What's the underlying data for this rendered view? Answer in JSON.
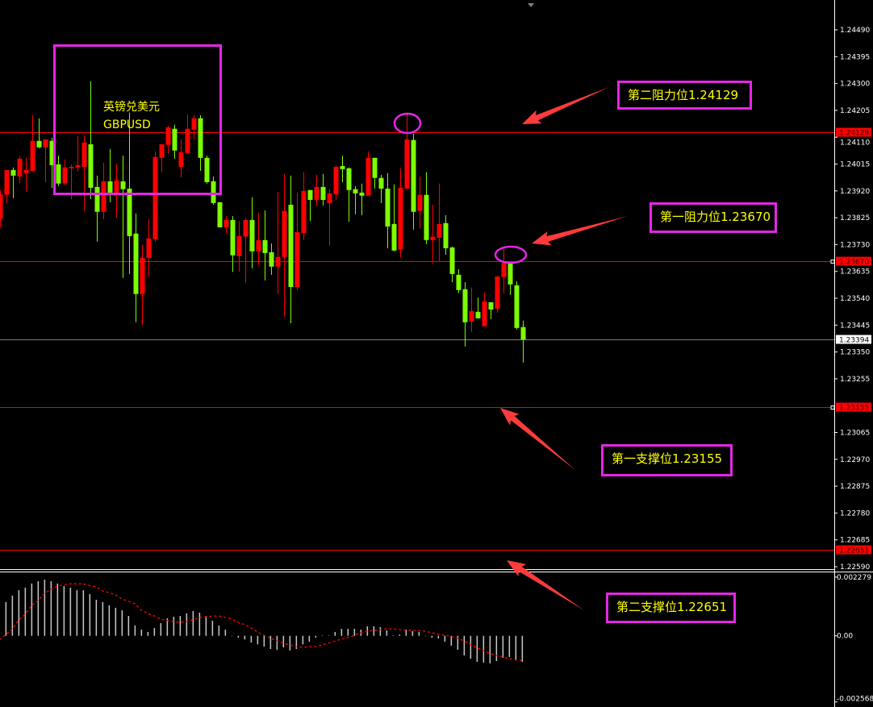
{
  "chart_data": {
    "type": "candlestick",
    "symbol_label": "英镑兑美元",
    "symbol_code": "GBPUSD",
    "price_axis": {
      "range": [
        1.2251,
        1.2459
      ],
      "ticks": [
        "1.24490",
        "1.24395",
        "1.24300",
        "1.24205",
        "1.24110",
        "1.24015",
        "1.23920",
        "1.23825",
        "1.23730",
        "1.23635",
        "1.23540",
        "1.23445",
        "1.23350",
        "1.23255",
        "1.23065",
        "1.22970",
        "1.22875",
        "1.22780",
        "1.22685",
        "1.22590"
      ]
    },
    "candle_format": [
      "open",
      "high",
      "low",
      "close"
    ],
    "candles": [
      [
        1.2382,
        1.23923,
        1.23791,
        1.23908
      ],
      [
        1.23906,
        1.23994,
        1.23877,
        1.23994
      ],
      [
        1.23994,
        1.24003,
        1.23894,
        1.23974
      ],
      [
        1.23971,
        1.24043,
        1.23948,
        1.24034
      ],
      [
        1.23983,
        1.24037,
        1.23917,
        1.23994
      ],
      [
        1.23991,
        1.24188,
        1.23988,
        1.24097
      ],
      [
        1.24097,
        1.24177,
        1.24071,
        1.24074
      ],
      [
        1.24074,
        1.24102,
        1.23951,
        1.24102
      ],
      [
        1.24097,
        1.24108,
        1.23931,
        1.24011
      ],
      [
        1.24014,
        1.24045,
        1.23937,
        1.23946
      ],
      [
        1.23946,
        1.24031,
        1.2394,
        1.24003
      ],
      [
        1.24,
        1.24014,
        1.23891,
        1.24005
      ],
      [
        1.24003,
        1.24114,
        1.23988,
        1.24011
      ],
      [
        1.24005,
        1.24117,
        1.23849,
        1.24091
      ],
      [
        1.24085,
        1.24308,
        1.23891,
        1.23931
      ],
      [
        1.23934,
        1.23974,
        1.2374,
        1.23846
      ],
      [
        1.23846,
        1.2402,
        1.2382,
        1.23954
      ],
      [
        1.23954,
        1.24068,
        1.2388,
        1.23914
      ],
      [
        1.23914,
        1.24017,
        1.23826,
        1.23957
      ],
      [
        1.23954,
        1.24045,
        1.23612,
        1.23926
      ],
      [
        1.23928,
        1.24197,
        1.23626,
        1.2376
      ],
      [
        1.23769,
        1.2384,
        1.23455,
        1.23555
      ],
      [
        1.23555,
        1.23729,
        1.23446,
        1.23683
      ],
      [
        1.23683,
        1.2382,
        1.23617,
        1.23752
      ],
      [
        1.23749,
        1.2406,
        1.2374,
        1.2404
      ],
      [
        1.24037,
        1.24085,
        1.23986,
        1.24085
      ],
      [
        1.24083,
        1.24151,
        1.24051,
        1.24145
      ],
      [
        1.2414,
        1.24154,
        1.24034,
        1.24063
      ],
      [
        1.24005,
        1.24102,
        1.23968,
        1.24057
      ],
      [
        1.24054,
        1.24191,
        1.24054,
        1.2414
      ],
      [
        1.24137,
        1.24188,
        1.24102,
        1.24177
      ],
      [
        1.24177,
        1.24188,
        1.23991,
        1.24037
      ],
      [
        1.24037,
        1.24045,
        1.23946,
        1.23951
      ],
      [
        1.23954,
        1.23971,
        1.23871,
        1.23877
      ],
      [
        1.2388,
        1.2388,
        1.23791,
        1.23791
      ],
      [
        1.23791,
        1.23831,
        1.23771,
        1.23817
      ],
      [
        1.23817,
        1.23831,
        1.23633,
        1.23692
      ],
      [
        1.23689,
        1.23814,
        1.23635,
        1.2376
      ],
      [
        1.23758,
        1.23823,
        1.23595,
        1.23817
      ],
      [
        1.23817,
        1.23897,
        1.23646,
        1.23706
      ],
      [
        1.23706,
        1.23843,
        1.23657,
        1.23746
      ],
      [
        1.23746,
        1.23851,
        1.23603,
        1.237
      ],
      [
        1.23703,
        1.23734,
        1.23623,
        1.23652
      ],
      [
        1.23652,
        1.23917,
        1.23555,
        1.23686
      ],
      [
        1.23686,
        1.2398,
        1.23475,
        1.23849
      ],
      [
        1.23871,
        1.23974,
        1.23452,
        1.2358
      ],
      [
        1.2358,
        1.23914,
        1.23569,
        1.23774
      ],
      [
        1.23771,
        1.23986,
        1.23746,
        1.2392
      ],
      [
        1.23923,
        1.23923,
        1.23814,
        1.23888
      ],
      [
        1.23888,
        1.23977,
        1.23866,
        1.23934
      ],
      [
        1.23934,
        1.2398,
        1.23868,
        1.23888
      ],
      [
        1.23877,
        1.23926,
        1.23726,
        1.23911
      ],
      [
        1.23908,
        1.24011,
        1.23888,
        1.24005
      ],
      [
        1.24008,
        1.24045,
        1.23951,
        1.23997
      ],
      [
        1.24,
        1.24003,
        1.23811,
        1.23923
      ],
      [
        1.23926,
        1.23937,
        1.23837,
        1.23911
      ],
      [
        1.23914,
        1.23946,
        1.23834,
        1.23903
      ],
      [
        1.23903,
        1.2406,
        1.23903,
        1.24037
      ],
      [
        1.24037,
        1.24037,
        1.23928,
        1.23966
      ],
      [
        1.23966,
        1.23977,
        1.23877,
        1.23928
      ],
      [
        1.23928,
        1.23983,
        1.23717,
        1.23794
      ],
      [
        1.23803,
        1.23943,
        1.23706,
        1.23709
      ],
      [
        1.23712,
        1.24,
        1.23683,
        1.23931
      ],
      [
        1.23928,
        1.24197,
        1.23928,
        1.24102
      ],
      [
        1.241,
        1.24122,
        1.23783,
        1.23846
      ],
      [
        1.23849,
        1.23971,
        1.23786,
        1.23906
      ],
      [
        1.23906,
        1.23986,
        1.23732,
        1.23746
      ],
      [
        1.23746,
        1.23871,
        1.23663,
        1.23758
      ],
      [
        1.23754,
        1.23946,
        1.23672,
        1.23803
      ],
      [
        1.23806,
        1.23834,
        1.23694,
        1.23717
      ],
      [
        1.2372,
        1.23723,
        1.23597,
        1.23626
      ],
      [
        1.23623,
        1.23643,
        1.23558,
        1.23569
      ],
      [
        1.23572,
        1.23597,
        1.23369,
        1.23455
      ],
      [
        1.23458,
        1.23578,
        1.23421,
        1.23495
      ],
      [
        1.23492,
        1.23543,
        1.23469,
        1.23469
      ],
      [
        1.23441,
        1.2356,
        1.23441,
        1.23529
      ],
      [
        1.23526,
        1.23526,
        1.23466,
        1.235
      ],
      [
        1.23503,
        1.2362,
        1.23489,
        1.23617
      ],
      [
        1.23615,
        1.23714,
        1.23558,
        1.23665
      ],
      [
        1.23663,
        1.23663,
        1.23552,
        1.23589
      ],
      [
        1.23586,
        1.236,
        1.23429,
        1.23435
      ],
      [
        1.23438,
        1.23461,
        1.23312,
        1.23394
      ]
    ],
    "colors": {
      "up": "#ff0000",
      "down": "#7cfc00",
      "background": "#000000",
      "annotation_box": "#e626e6",
      "annotation_text": "#ffff00",
      "arrow": "#ff3b3b",
      "level_line": "#ff0000",
      "bid_line": "#808080"
    },
    "current_price": "1.23394",
    "levels": [
      {
        "price": "1.24129",
        "label": "第二阻力位1.24129"
      },
      {
        "price": "1.23670",
        "label": "第一阻力位1.23670"
      },
      {
        "price": "1.23155",
        "label": "第一支撑位1.23155"
      },
      {
        "price": "1.22651",
        "label": "第二支撑位1.22651"
      }
    ],
    "macd": {
      "axis_labels": [
        "0.002279",
        "0.00",
        "-0.002568"
      ],
      "range": [
        -0.002568,
        0.002279
      ],
      "histogram": [
        null,
        0.00131,
        0.00156,
        0.00177,
        0.00187,
        0.00203,
        0.00212,
        0.00218,
        0.00212,
        0.00203,
        0.00193,
        0.00187,
        0.00177,
        0.00177,
        0.00162,
        0.0014,
        0.00131,
        0.00118,
        0.00109,
        0.00099,
        0.00077,
        0.0004,
        0.00024,
        0.00015,
        0.0003,
        0.00049,
        0.00068,
        0.00074,
        0.00077,
        0.00087,
        0.00096,
        0.0009,
        0.00077,
        0.00059,
        0.0004,
        0.00024,
        0,
        -7e-05,
        -0.00014,
        -0.00026,
        -0.00033,
        -0.00042,
        -0.00051,
        -0.00054,
        -0.00045,
        -0.00057,
        -0.00051,
        -0.00033,
        -0.00023,
        -7e-05,
        1e-05,
        1e-05,
        0.00015,
        0.00027,
        0.00027,
        0.00027,
        0.00024,
        0.00037,
        0.00037,
        0.00034,
        0.00021,
        2e-05,
        5e-05,
        0.00024,
        0.00018,
        0.00015,
        0,
        -7e-05,
        -0.0001,
        -0.00023,
        -0.00038,
        -0.00054,
        -0.00076,
        -0.00089,
        -0.00101,
        -0.00104,
        -0.00107,
        -0.00098,
        -0.00085,
        -0.00082,
        -0.00092,
        -0.00101
      ],
      "signal": [
        -0.00016,
        5e-05,
        0.00027,
        0.00062,
        0.00084,
        0.00118,
        0.00137,
        0.00165,
        0.00181,
        0.00193,
        0.00198,
        0.00202,
        0.00202,
        0.00202,
        0.00196,
        0.0019,
        0.00174,
        0.00168,
        0.00159,
        0.00143,
        0.00134,
        0.00124,
        0.00099,
        0.00087,
        0.00077,
        0.00065,
        0.00059,
        0.00055,
        0.00052,
        0.00055,
        0.00062,
        0.00071,
        0.00074,
        0.00077,
        0.00077,
        0.00071,
        0.00065,
        0.00052,
        0.00043,
        0.0003,
        0.00015,
        2e-05,
        -9e-05,
        -0.0002,
        -0.00029,
        -0.00035,
        -0.00042,
        -0.00045,
        -0.00042,
        -0.00042,
        -0.00035,
        -0.00029,
        -0.0002,
        -0.00013,
        -7e-05,
        2e-05,
        0.00012,
        0.00018,
        0.00021,
        0.00024,
        0.00027,
        0.00027,
        0.00024,
        0.00022,
        0.00022,
        0.0002,
        0.00018,
        0.00012,
        6e-05,
        2e-05,
        -2e-05,
        -9e-05,
        -0.0002,
        -0.00034,
        -0.00047,
        -0.00057,
        -0.00069,
        -0.00077,
        -0.00082,
        -0.00089,
        -0.00094,
        -0.00096
      ],
      "histogram_color": "#c8c8c8",
      "signal_color": "#ff0000"
    }
  }
}
